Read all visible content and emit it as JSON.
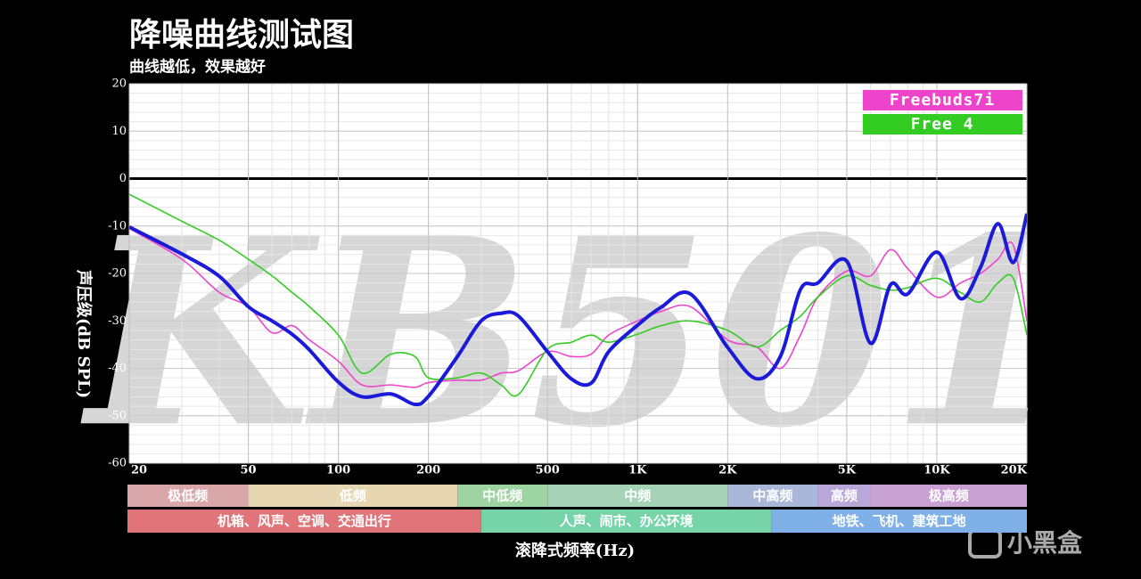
{
  "chart_data": {
    "type": "line",
    "title": "降噪曲线测试图",
    "subtitle": "曲线越低，效果越好",
    "x_label": "滚降式频率(Hz)",
    "y_label": "声压级(dB SPL)",
    "watermark": "KB501",
    "logo": "小黑盒",
    "x_scale": "log",
    "grid": true,
    "legend": "upper right",
    "xlim": [
      20,
      20000
    ],
    "ylim": [
      -60,
      20
    ],
    "xticks": [
      20,
      50,
      100,
      200,
      500,
      {
        "value": 1000,
        "label": "1K"
      },
      {
        "value": 2000,
        "label": "2K"
      },
      {
        "value": 5000,
        "label": "5K"
      },
      {
        "value": 10000,
        "label": "10K"
      },
      {
        "value": 20000,
        "label": "20K"
      }
    ],
    "yticks": [
      20,
      10,
      0,
      -10,
      -20,
      -30,
      -40,
      -50,
      -60
    ],
    "x": [
      20,
      30,
      40,
      50,
      60,
      70,
      80,
      100,
      120,
      150,
      180,
      200,
      250,
      300,
      350,
      400,
      500,
      600,
      700,
      800,
      1000,
      1200,
      1500,
      2000,
      2500,
      3000,
      3500,
      4000,
      5000,
      6000,
      7000,
      8000,
      10000,
      12000,
      14000,
      16000,
      18000,
      20000
    ],
    "series": [
      {
        "name": "Freebuds7i",
        "color": "#ee44cc",
        "values": [
          -10.5,
          -17,
          -24,
          -27,
          -32.5,
          -31,
          -34,
          -38.5,
          -43.5,
          -43.5,
          -44,
          -43,
          -42.5,
          -42.5,
          -41,
          -40.5,
          -36.5,
          -37.5,
          -37,
          -33,
          -30,
          -28,
          -27,
          -34,
          -35.5,
          -40,
          -33,
          -25,
          -19.5,
          -20.5,
          -15,
          -19,
          -25,
          -22,
          -20,
          -17,
          -14,
          -30
        ]
      },
      {
        "name": "Free 4",
        "color": "#33cc22",
        "values": [
          -3.3,
          -9,
          -13,
          -17,
          -20.5,
          -24,
          -27,
          -33,
          -41,
          -37,
          -37.5,
          -42,
          -42,
          -41,
          -43.5,
          -45.5,
          -36,
          -34.5,
          -33,
          -34.5,
          -32.8,
          -31,
          -30,
          -32,
          -35.5,
          -32,
          -29,
          -25,
          -20.5,
          -22.5,
          -23.5,
          -23,
          -21,
          -24,
          -26,
          -22,
          -21,
          -33
        ]
      },
      {
        "color": "#1a1ad8",
        "values": [
          -10.2,
          -15.9,
          -20.6,
          -27,
          -30,
          -32.8,
          -36.1,
          -42.9,
          -46,
          -45.4,
          -47.6,
          -45.9,
          -37.5,
          -30,
          -28.4,
          -29,
          -36.5,
          -42.2,
          -43.1,
          -36.5,
          -30.9,
          -27.1,
          -24.3,
          -35.6,
          -42.2,
          -37.5,
          -23.4,
          -22,
          -17.4,
          -34.7,
          -22.4,
          -24.3,
          -15.5,
          -25.3,
          -18.7,
          -9.5,
          -17.7,
          -7.4
        ]
      }
    ],
    "bands": [
      [
        {
          "label": "极低频",
          "from": 20,
          "to": 50,
          "color": "#d9a7aa"
        },
        {
          "label": "低频",
          "from": 50,
          "to": 250,
          "color": "#e6d7b2"
        },
        {
          "label": "中低频",
          "from": 250,
          "to": 500,
          "color": "#9ed3a2"
        },
        {
          "label": "中频",
          "from": 500,
          "to": 2000,
          "color": "#a6d2b8"
        },
        {
          "label": "中高频",
          "from": 2000,
          "to": 4000,
          "color": "#a9b8d8"
        },
        {
          "label": "高频",
          "from": 4000,
          "to": 6000,
          "color": "#b7a8d9"
        },
        {
          "label": "极高频",
          "from": 6000,
          "to": 20000,
          "color": "#c8a0d2"
        }
      ],
      [
        {
          "label": "机箱、风声、空调、交通出行",
          "from": 20,
          "to": 300,
          "color": "#e07478"
        },
        {
          "label": "人声、闹市、办公环境",
          "from": 300,
          "to": 2800,
          "color": "#76d4a8"
        },
        {
          "label": "地铁、飞机、建筑工地",
          "from": 2800,
          "to": 20000,
          "color": "#7fb0e8"
        }
      ]
    ]
  }
}
